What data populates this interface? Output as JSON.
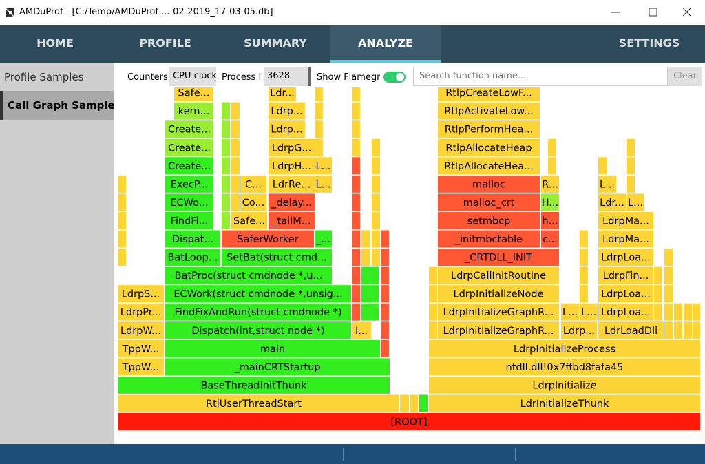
{
  "window": {
    "title": "AMDuProf - [C:/Temp/AMDuProf-...-02-2019_17-03-05.db]"
  },
  "nav": {
    "tabs": [
      "HOME",
      "PROFILE",
      "SUMMARY",
      "ANALYZE"
    ],
    "settings": "SETTINGS"
  },
  "sidebar": {
    "items": [
      "Profile Samples",
      "Call Graph Samples"
    ]
  },
  "toolbar": {
    "counters_label": "Counters",
    "counter": "CPU clocks",
    "process_label": "Process I",
    "process": "3628",
    "flame_label": "Show Flamegra",
    "search_placeholder": "Search function name...",
    "clear": "Clear"
  },
  "flamegraph": {
    "frames": [
      "[ROOT]",
      "RtlUserThreadStart",
      "LdrInitializeThunk",
      "BaseThreadInitThunk",
      "LdrpInitialize",
      "TppW...",
      "_mainCRTStartup",
      "ntdll.dll!0x7ffbd8fafa45",
      "TppW...",
      "main",
      "LdrpInitializeProcess",
      "LdrpW...",
      "Dispatch(int,struct node *)",
      "I...",
      "LdrpInitializeGraphR...",
      "Ldrp...",
      "LdrLoadDll",
      "LdrpPr...",
      "FindFixAndRun(struct cmdnode *)",
      "LdrpInitializeGraphR...",
      "L...",
      "L...",
      "LdrpLoa...",
      "LdrpS...",
      "ECWork(struct cmdnode *,unsig...",
      "LdrpInitializeNode",
      "LdrpLoa...",
      "BatProc(struct cmdnode *,u...",
      "LdrpCallInitRoutine",
      "LdrpFin...",
      "BatLoop...",
      "SetBat(struct cmd...",
      "_CRTDLL_INIT",
      "LdrpLoa...",
      "Dispat...",
      "SaferWorker",
      "_...",
      "_initmbctable",
      "c...",
      "LdrpMa...",
      "FindFi...",
      "Safe...",
      "_tailM...",
      "setmbcp",
      "h...",
      "LdrpMa...",
      "ECWo...",
      "Co...",
      "_delay...",
      "malloc_crt",
      "H...",
      "Ldr...",
      "L...",
      "ExecP...",
      "C...",
      "LdrRe...",
      "L...",
      "malloc",
      "R...",
      "L...",
      "Create...",
      "LdrpH...",
      "L...",
      "RtlpAllocateHea...",
      "Create...",
      "LdrpG...",
      "RtlpAllocateHeap",
      "Create...",
      "Ldrp...",
      "RtlpPerformHea...",
      "kern...",
      "Ldrp...",
      "RtlpActivateLow...",
      "Safe...",
      "Ldr...",
      "RtlpCreateLowF..."
    ]
  }
}
